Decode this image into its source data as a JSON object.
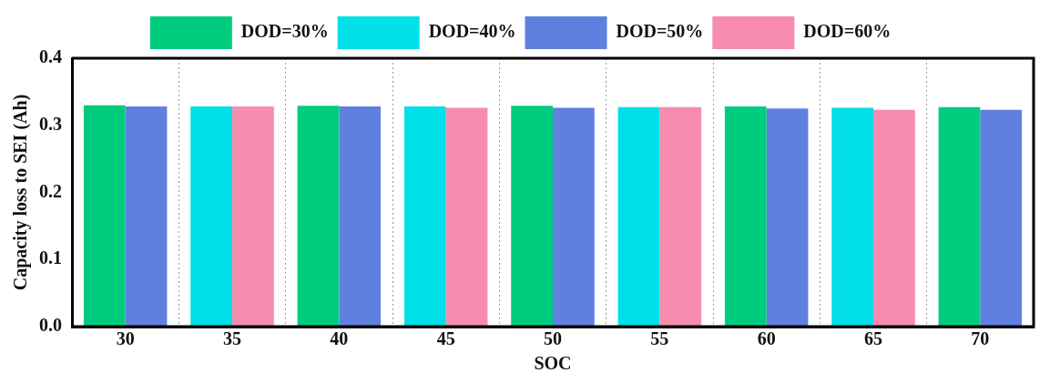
{
  "chart_data": {
    "type": "bar",
    "xlabel": "SOC",
    "ylabel": "Capacity loss to SEI (Ah)",
    "categories": [
      "30",
      "35",
      "40",
      "45",
      "50",
      "55",
      "60",
      "65",
      "70"
    ],
    "series": [
      {
        "name": "DOD=30%",
        "color": "#00cc7f",
        "values": [
          0.33,
          null,
          0.329,
          null,
          0.329,
          null,
          0.328,
          null,
          0.327
        ]
      },
      {
        "name": "DOD=40%",
        "color": "#00e0e6",
        "values": [
          null,
          0.328,
          null,
          0.328,
          null,
          0.327,
          null,
          0.326,
          null
        ]
      },
      {
        "name": "DOD=50%",
        "color": "#6080e0",
        "values": [
          0.328,
          null,
          0.328,
          null,
          0.326,
          null,
          0.325,
          null,
          0.323
        ]
      },
      {
        "name": "DOD=60%",
        "color": "#f78caf",
        "values": [
          null,
          0.328,
          null,
          0.326,
          null,
          0.327,
          null,
          0.323,
          null
        ]
      }
    ],
    "ylim": [
      0,
      0.4
    ],
    "yticks": [
      {
        "value": 0,
        "label": "0.0"
      },
      0.1,
      0.2,
      0.3,
      0.4
    ],
    "grid": "x",
    "legend": "top"
  }
}
